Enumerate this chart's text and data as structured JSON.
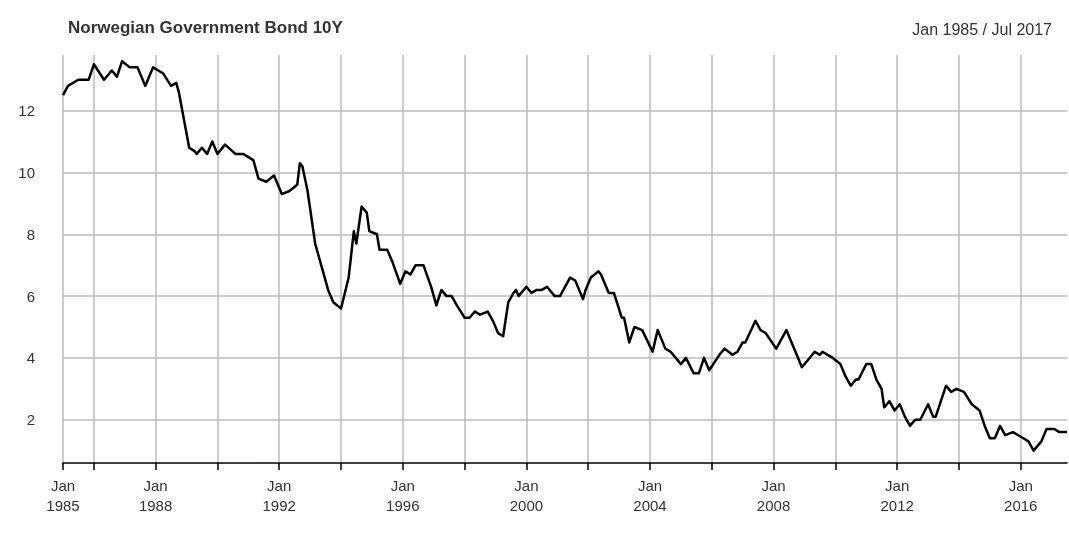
{
  "chart_data": {
    "type": "line",
    "title": "Norwegian Government Bond 10Y",
    "subtitle": "Jan 1985 / Jul 2017",
    "color": "#000000",
    "grid": true,
    "marker": "none",
    "line_style": "solid",
    "x": [
      "1985-01",
      "1985-03",
      "1985-07",
      "1985-11",
      "1986-01",
      "1986-05",
      "1986-08",
      "1986-10",
      "1986-12",
      "1987-03",
      "1987-06",
      "1987-09",
      "1987-12",
      "1988-04",
      "1988-07",
      "1988-09",
      "1988-10",
      "1989-02",
      "1989-04",
      "1989-05",
      "1989-07",
      "1989-09",
      "1989-11",
      "1990-01",
      "1990-04",
      "1990-08",
      "1990-11",
      "1991-03",
      "1991-05",
      "1991-08",
      "1991-11",
      "1992-02",
      "1992-05",
      "1992-08",
      "1992-09",
      "1992-10",
      "1992-12",
      "1993-03",
      "1993-06",
      "1993-08",
      "1993-10",
      "1994-01",
      "1994-04",
      "1994-06",
      "1994-07",
      "1994-09",
      "1994-11",
      "1994-12",
      "1995-03",
      "1995-04",
      "1995-07",
      "1995-09",
      "1995-12",
      "1996-02",
      "1996-04",
      "1996-06",
      "1996-09",
      "1996-12",
      "1997-02",
      "1997-04",
      "1997-06",
      "1997-08",
      "1997-10",
      "1998-01",
      "1998-03",
      "1998-05",
      "1998-07",
      "1998-10",
      "1998-12",
      "1999-02",
      "1999-04",
      "1999-06",
      "1999-08",
      "1999-09",
      "1999-10",
      "2000-01",
      "2000-03",
      "2000-05",
      "2000-07",
      "2000-09",
      "2000-12",
      "2001-02",
      "2001-06",
      "2001-08",
      "2001-11",
      "2001-12",
      "2002-02",
      "2002-05",
      "2002-06",
      "2002-09",
      "2002-11",
      "2003-02",
      "2003-03",
      "2003-05",
      "2003-07",
      "2003-10",
      "2004-02",
      "2004-04",
      "2004-07",
      "2004-09",
      "2005-01",
      "2005-03",
      "2005-06",
      "2005-08",
      "2005-10",
      "2005-12",
      "2006-04",
      "2006-06",
      "2006-09",
      "2006-11",
      "2007-01",
      "2007-02",
      "2007-06",
      "2007-08",
      "2007-10",
      "2008-02",
      "2008-06",
      "2008-08",
      "2008-10",
      "2008-12",
      "2009-02",
      "2009-05",
      "2009-07",
      "2009-08",
      "2009-12",
      "2010-03",
      "2010-05",
      "2010-07",
      "2010-09",
      "2010-10",
      "2011-01",
      "2011-03",
      "2011-05",
      "2011-07",
      "2011-08",
      "2011-10",
      "2011-12",
      "2012-02",
      "2012-04",
      "2012-06",
      "2012-08",
      "2012-10",
      "2013-01",
      "2013-03",
      "2013-04",
      "2013-06",
      "2013-08",
      "2013-10",
      "2013-12",
      "2014-03",
      "2014-06",
      "2014-09",
      "2014-11",
      "2015-01",
      "2015-03",
      "2015-05",
      "2015-07",
      "2015-10",
      "2016-02",
      "2016-04",
      "2016-06",
      "2016-09",
      "2016-11",
      "2017-02",
      "2017-04",
      "2017-07"
    ],
    "values": [
      12.5,
      12.8,
      13.0,
      13.0,
      13.5,
      13.0,
      13.3,
      13.1,
      13.6,
      13.4,
      13.4,
      12.8,
      13.4,
      13.2,
      12.8,
      12.9,
      12.6,
      10.8,
      10.7,
      10.6,
      10.8,
      10.6,
      11.0,
      10.6,
      10.9,
      10.6,
      10.6,
      10.4,
      9.8,
      9.7,
      9.9,
      9.3,
      9.4,
      9.6,
      10.3,
      10.2,
      9.4,
      7.7,
      6.8,
      6.2,
      5.8,
      5.6,
      6.6,
      8.1,
      7.7,
      8.9,
      8.7,
      8.1,
      8.0,
      7.5,
      7.5,
      7.1,
      6.4,
      6.8,
      6.7,
      7.0,
      7.0,
      6.3,
      5.7,
      6.2,
      6.0,
      6.0,
      5.7,
      5.3,
      5.3,
      5.5,
      5.4,
      5.5,
      5.2,
      4.8,
      4.7,
      5.8,
      6.1,
      6.2,
      6.0,
      6.3,
      6.1,
      6.2,
      6.2,
      6.3,
      6.0,
      6.0,
      6.6,
      6.5,
      5.9,
      6.2,
      6.6,
      6.8,
      6.7,
      6.1,
      6.1,
      5.3,
      5.3,
      4.5,
      5.0,
      4.9,
      4.2,
      4.9,
      4.3,
      4.2,
      3.8,
      4.0,
      3.5,
      3.5,
      4.0,
      3.6,
      4.1,
      4.3,
      4.1,
      4.2,
      4.5,
      4.5,
      5.2,
      4.9,
      4.8,
      4.3,
      4.9,
      4.5,
      4.1,
      3.7,
      3.9,
      4.2,
      4.1,
      4.2,
      4.0,
      3.8,
      3.4,
      3.1,
      3.3,
      3.3,
      3.8,
      3.8,
      3.3,
      3.0,
      2.4,
      2.6,
      2.3,
      2.5,
      2.1,
      1.8,
      2.0,
      2.0,
      2.5,
      2.1,
      2.1,
      2.6,
      3.1,
      2.9,
      3.0,
      2.9,
      2.5,
      2.3,
      1.8,
      1.4,
      1.4,
      1.8,
      1.5,
      1.6,
      1.4,
      1.3,
      1.0,
      1.3,
      1.7,
      1.7,
      1.6,
      1.6
    ],
    "xlim": [
      "1985-01",
      "2017-07"
    ],
    "xticks": [
      {
        "value": "1985-01",
        "label": "Jan\n1985"
      },
      {
        "value": "1986-01",
        "label": null
      },
      {
        "value": "1988-01",
        "label": "Jan\n1988"
      },
      {
        "value": "1990-01",
        "label": null
      },
      {
        "value": "1992-01",
        "label": "Jan\n1992"
      },
      {
        "value": "1994-01",
        "label": null
      },
      {
        "value": "1996-01",
        "label": "Jan\n1996"
      },
      {
        "value": "1998-01",
        "label": null
      },
      {
        "value": "2000-01",
        "label": "Jan\n2000"
      },
      {
        "value": "2002-01",
        "label": null
      },
      {
        "value": "2004-01",
        "label": "Jan\n2004"
      },
      {
        "value": "2006-01",
        "label": null
      },
      {
        "value": "2008-01",
        "label": "Jan\n2008"
      },
      {
        "value": "2010-01",
        "label": null
      },
      {
        "value": "2012-01",
        "label": "Jan\n2012"
      },
      {
        "value": "2014-01",
        "label": null
      },
      {
        "value": "2016-01",
        "label": "Jan\n2016"
      }
    ],
    "ylim": [
      0.6,
      13.8
    ],
    "yticks": [
      2,
      4,
      6,
      8,
      10,
      12
    ]
  }
}
